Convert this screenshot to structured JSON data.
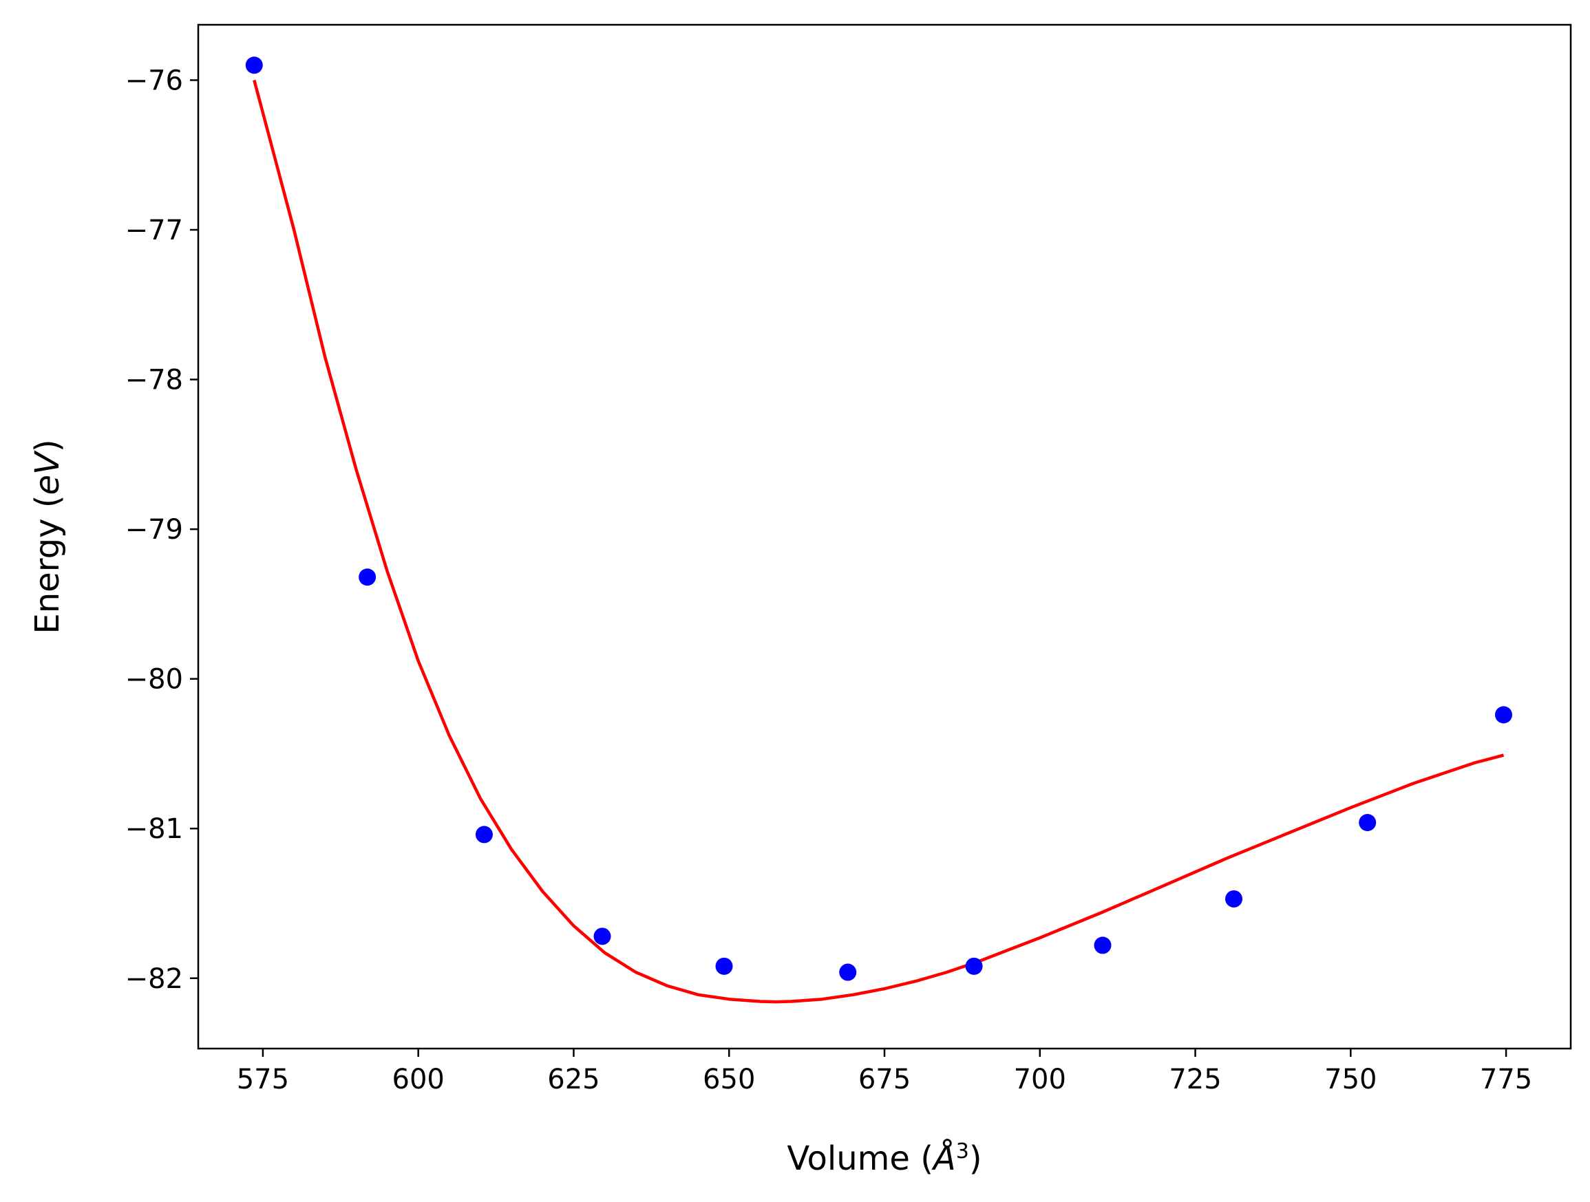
{
  "chart_data": {
    "type": "scatter",
    "xlabel": "Volume (Å³)",
    "ylabel": "Energy (eV)",
    "xlabel_parts": {
      "pre": "Volume (",
      "sym": "Å",
      "sup": "3",
      "post": ")"
    },
    "ylabel_parts": {
      "pre": "Energy (",
      "sym": "eV",
      "post": ")"
    },
    "xlim": [
      564.6,
      785.4
    ],
    "ylim": [
      -82.47,
      -75.63
    ],
    "xticks": [
      575,
      600,
      625,
      650,
      675,
      700,
      725,
      750,
      775
    ],
    "xtick_labels": [
      "575",
      "600",
      "625",
      "650",
      "675",
      "700",
      "725",
      "750",
      "775"
    ],
    "yticks": [
      -76,
      -77,
      -78,
      -79,
      -80,
      -81,
      -82
    ],
    "ytick_labels": [
      "−76",
      "−77",
      "−78",
      "−79",
      "−80",
      "−81",
      "−82"
    ],
    "grid": false,
    "series": [
      {
        "kind": "points",
        "color": "#0000ff",
        "x": [
          573.6,
          591.8,
          610.6,
          629.6,
          649.2,
          669.1,
          689.4,
          710.1,
          731.2,
          752.7,
          774.6
        ],
        "y": [
          -75.9,
          -79.32,
          -81.04,
          -81.72,
          -81.92,
          -81.96,
          -81.92,
          -81.78,
          -81.47,
          -80.96,
          -80.24
        ]
      },
      {
        "kind": "fit-curve",
        "color": "#ff0000",
        "x": [
          573.6,
          580,
          585,
          590,
          595,
          600,
          605,
          610,
          615,
          620,
          625,
          630,
          635,
          640,
          645,
          650,
          655,
          657.5,
          660,
          665,
          670,
          675,
          680,
          685,
          690,
          695,
          700,
          710,
          720,
          730,
          740,
          750,
          760,
          770,
          774.6
        ],
        "y": [
          -76.0,
          -77.0,
          -77.85,
          -78.6,
          -79.28,
          -79.88,
          -80.38,
          -80.8,
          -81.14,
          -81.42,
          -81.65,
          -81.83,
          -81.96,
          -82.05,
          -82.11,
          -82.14,
          -82.155,
          -82.158,
          -82.155,
          -82.14,
          -82.11,
          -82.07,
          -82.02,
          -81.96,
          -81.89,
          -81.81,
          -81.73,
          -81.56,
          -81.38,
          -81.2,
          -81.03,
          -80.86,
          -80.7,
          -80.56,
          -80.51
        ]
      }
    ]
  }
}
